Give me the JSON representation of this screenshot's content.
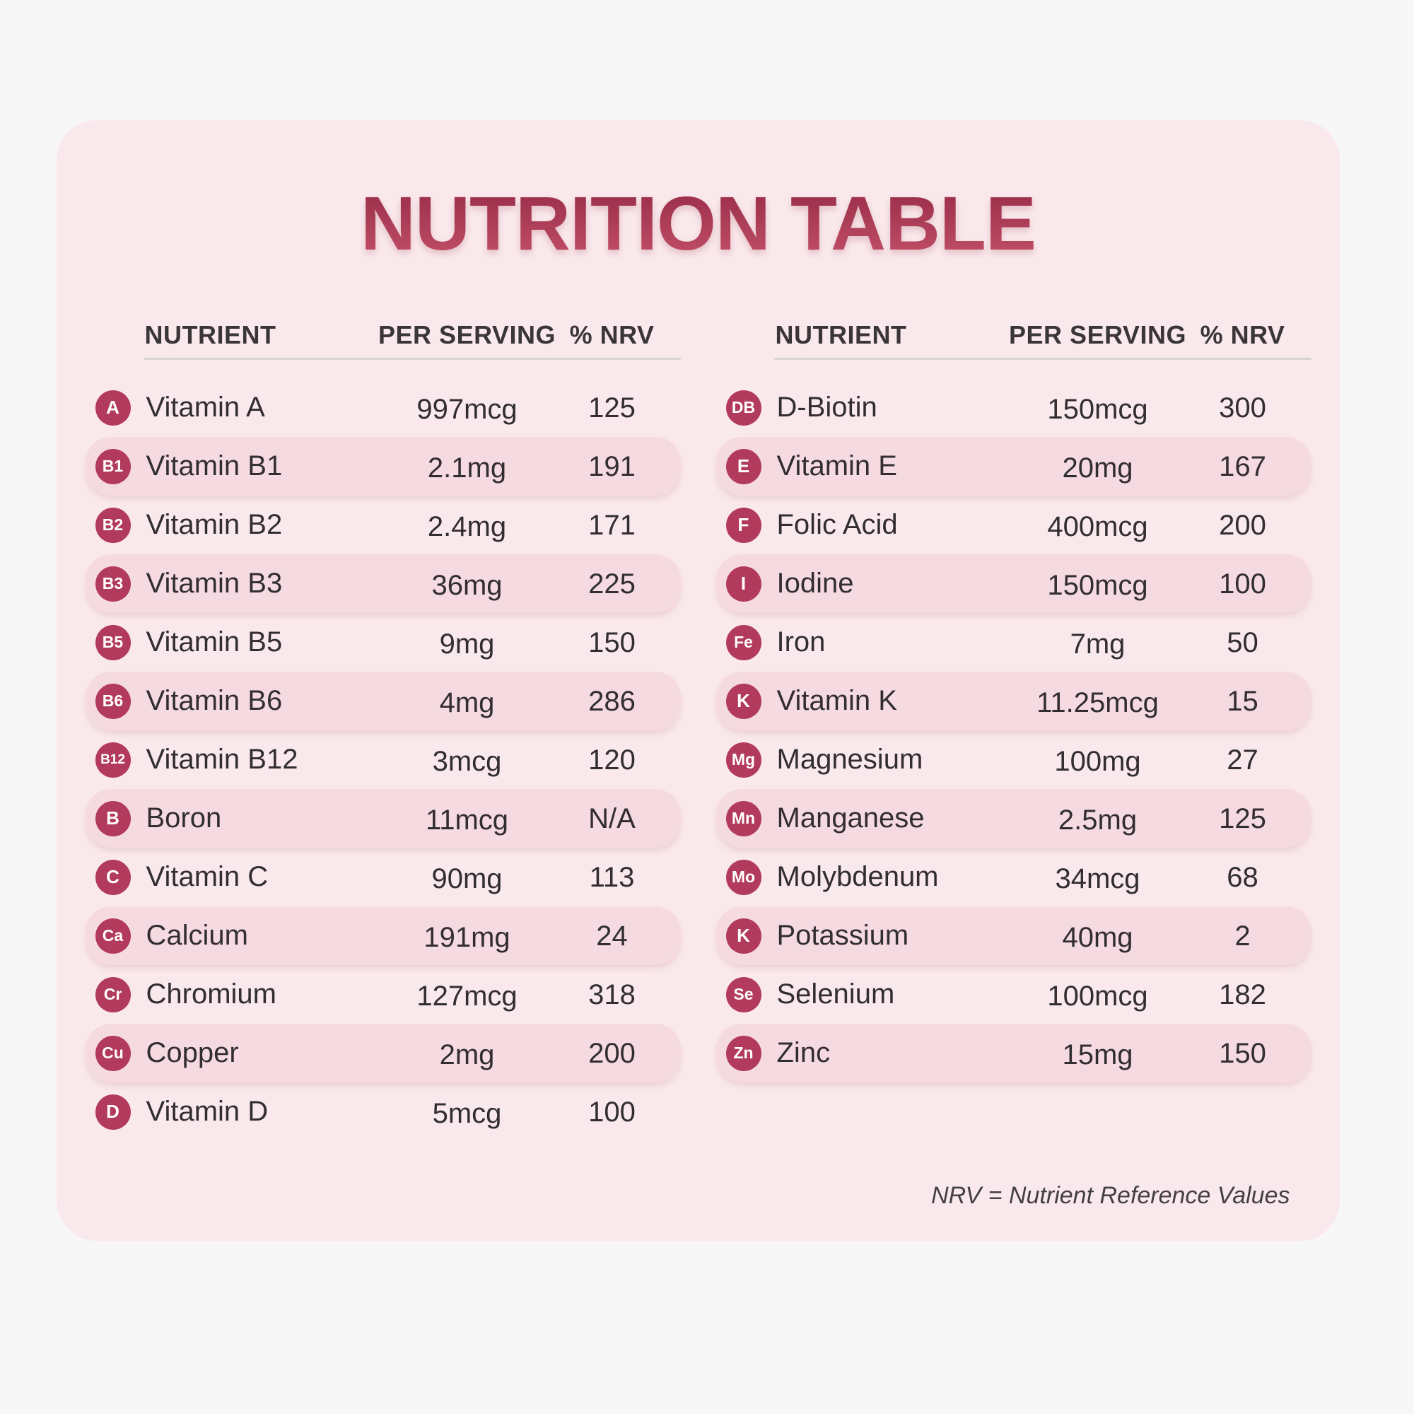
{
  "colors": {
    "page_bg": "#f8f7f7",
    "card_bg": "#fae9ec",
    "stripe": "#f5dae1",
    "badge": "#b23a5c",
    "title_top": "#9c2f4b",
    "title_bottom": "#c04e67",
    "header_text": "#3a3637",
    "text": "#322e2f",
    "footnote_text": "#443f41",
    "divider": "#d9d3d4"
  },
  "chart_data": {
    "type": "table",
    "title": "NUTRITION TABLE",
    "columns": [
      "NUTRIENT",
      "PER SERVING",
      "% NRV"
    ],
    "footnote": "NRV = Nutrient Reference Values",
    "left_table": {
      "rows": [
        {
          "badge": "A",
          "name": "Vitamin A",
          "serving": "997mcg",
          "nrv": "125"
        },
        {
          "badge": "B1",
          "name": "Vitamin B1",
          "serving": "2.1mg",
          "nrv": "191"
        },
        {
          "badge": "B2",
          "name": "Vitamin B2",
          "serving": "2.4mg",
          "nrv": "171"
        },
        {
          "badge": "B3",
          "name": "Vitamin B3",
          "serving": "36mg",
          "nrv": "225"
        },
        {
          "badge": "B5",
          "name": "Vitamin B5",
          "serving": "9mg",
          "nrv": "150"
        },
        {
          "badge": "B6",
          "name": "Vitamin B6",
          "serving": "4mg",
          "nrv": "286"
        },
        {
          "badge": "B12",
          "name": "Vitamin B12",
          "serving": "3mcg",
          "nrv": "120"
        },
        {
          "badge": "B",
          "name": "Boron",
          "serving": "11mcg",
          "nrv": "N/A"
        },
        {
          "badge": "C",
          "name": "Vitamin C",
          "serving": "90mg",
          "nrv": "113"
        },
        {
          "badge": "Ca",
          "name": "Calcium",
          "serving": "191mg",
          "nrv": "24"
        },
        {
          "badge": "Cr",
          "name": "Chromium",
          "serving": "127mcg",
          "nrv": "318"
        },
        {
          "badge": "Cu",
          "name": "Copper",
          "serving": "2mg",
          "nrv": "200"
        },
        {
          "badge": "D",
          "name": "Vitamin D",
          "serving": "5mcg",
          "nrv": "100"
        }
      ]
    },
    "right_table": {
      "rows": [
        {
          "badge": "DB",
          "name": "D-Biotin",
          "serving": "150mcg",
          "nrv": "300"
        },
        {
          "badge": "E",
          "name": "Vitamin E",
          "serving": "20mg",
          "nrv": "167"
        },
        {
          "badge": "F",
          "name": "Folic Acid",
          "serving": "400mcg",
          "nrv": "200"
        },
        {
          "badge": "I",
          "name": "Iodine",
          "serving": "150mcg",
          "nrv": "100"
        },
        {
          "badge": "Fe",
          "name": "Iron",
          "serving": "7mg",
          "nrv": "50"
        },
        {
          "badge": "K",
          "name": "Vitamin K",
          "serving": "11.25mcg",
          "nrv": "15"
        },
        {
          "badge": "Mg",
          "name": "Magnesium",
          "serving": "100mg",
          "nrv": "27"
        },
        {
          "badge": "Mn",
          "name": "Manganese",
          "serving": "2.5mg",
          "nrv": "125"
        },
        {
          "badge": "Mo",
          "name": "Molybdenum",
          "serving": "34mcg",
          "nrv": "68"
        },
        {
          "badge": "K",
          "name": "Potassium",
          "serving": "40mg",
          "nrv": "2"
        },
        {
          "badge": "Se",
          "name": "Selenium",
          "serving": "100mcg",
          "nrv": "182"
        },
        {
          "badge": "Zn",
          "name": "Zinc",
          "serving": "15mg",
          "nrv": "150"
        }
      ]
    }
  }
}
